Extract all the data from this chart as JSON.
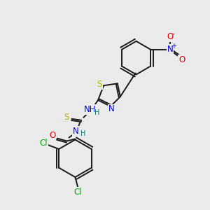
{
  "background_color": "#ebebeb",
  "bond_color": "#1a1a1a",
  "atom_colors": {
    "S": "#b8b800",
    "N": "#0000dd",
    "O": "#dd0000",
    "Cl": "#00aa00",
    "H": "#007777",
    "charge_plus": "#0000dd",
    "charge_minus": "#dd0000"
  },
  "figsize": [
    3.0,
    3.0
  ],
  "dpi": 100
}
